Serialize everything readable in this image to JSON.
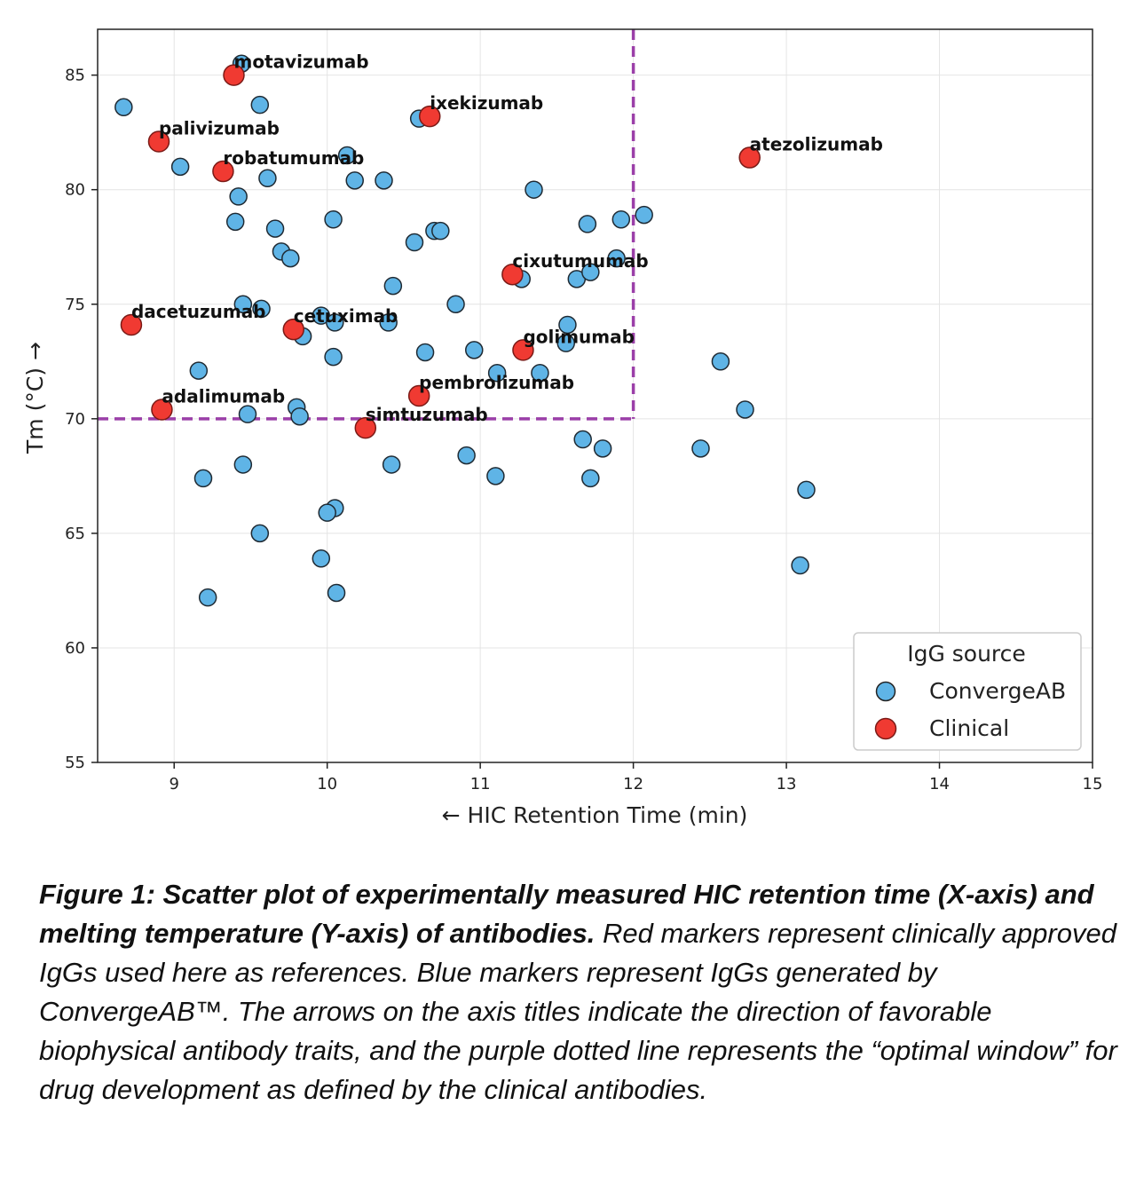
{
  "chart_data": {
    "type": "scatter",
    "xlabel": "← HIC Retention Time (min)",
    "ylabel": "Tm (°C) →",
    "xlim": [
      8.5,
      15
    ],
    "ylim": [
      55,
      87
    ],
    "xticks": [
      9,
      10,
      11,
      12,
      13,
      14,
      15
    ],
    "yticks": [
      55,
      60,
      65,
      70,
      75,
      80,
      85
    ],
    "grid": true,
    "legend": {
      "title": "IgG source",
      "position": "bottom-right"
    },
    "optimal_window": {
      "x_max": 12,
      "y_min": 70,
      "color": "#9b3fa8"
    },
    "series": [
      {
        "name": "ConvergeAB",
        "color": "#5fb4e6",
        "points": [
          {
            "x": 8.67,
            "y": 83.6
          },
          {
            "x": 9.04,
            "y": 81.0
          },
          {
            "x": 9.44,
            "y": 85.5
          },
          {
            "x": 9.56,
            "y": 83.7
          },
          {
            "x": 9.42,
            "y": 79.7
          },
          {
            "x": 9.4,
            "y": 78.6
          },
          {
            "x": 9.61,
            "y": 80.5
          },
          {
            "x": 9.66,
            "y": 78.3
          },
          {
            "x": 9.7,
            "y": 77.3
          },
          {
            "x": 9.76,
            "y": 77.0
          },
          {
            "x": 9.45,
            "y": 75.0
          },
          {
            "x": 9.57,
            "y": 74.8
          },
          {
            "x": 9.16,
            "y": 72.1
          },
          {
            "x": 9.48,
            "y": 70.2
          },
          {
            "x": 9.45,
            "y": 68.0
          },
          {
            "x": 9.19,
            "y": 67.4
          },
          {
            "x": 9.56,
            "y": 65.0
          },
          {
            "x": 9.22,
            "y": 62.2
          },
          {
            "x": 10.13,
            "y": 81.5
          },
          {
            "x": 10.18,
            "y": 80.4
          },
          {
            "x": 10.37,
            "y": 80.4
          },
          {
            "x": 10.04,
            "y": 78.7
          },
          {
            "x": 9.96,
            "y": 74.5
          },
          {
            "x": 10.05,
            "y": 74.2
          },
          {
            "x": 9.84,
            "y": 73.6
          },
          {
            "x": 10.04,
            "y": 72.7
          },
          {
            "x": 9.8,
            "y": 70.5
          },
          {
            "x": 9.82,
            "y": 70.1
          },
          {
            "x": 10.42,
            "y": 68.0
          },
          {
            "x": 10.05,
            "y": 66.1
          },
          {
            "x": 10.0,
            "y": 65.9
          },
          {
            "x": 9.96,
            "y": 63.9
          },
          {
            "x": 10.06,
            "y": 62.4
          },
          {
            "x": 10.6,
            "y": 83.1
          },
          {
            "x": 10.57,
            "y": 77.7
          },
          {
            "x": 10.7,
            "y": 78.2
          },
          {
            "x": 10.74,
            "y": 78.2
          },
          {
            "x": 10.43,
            "y": 75.8
          },
          {
            "x": 10.4,
            "y": 74.2
          },
          {
            "x": 10.84,
            "y": 75.0
          },
          {
            "x": 10.64,
            "y": 72.9
          },
          {
            "x": 10.96,
            "y": 73.0
          },
          {
            "x": 11.11,
            "y": 72.0
          },
          {
            "x": 10.91,
            "y": 68.4
          },
          {
            "x": 11.1,
            "y": 67.5
          },
          {
            "x": 11.35,
            "y": 80.0
          },
          {
            "x": 11.27,
            "y": 76.1
          },
          {
            "x": 11.57,
            "y": 74.1
          },
          {
            "x": 11.56,
            "y": 73.3
          },
          {
            "x": 11.39,
            "y": 72.0
          },
          {
            "x": 11.63,
            "y": 76.1
          },
          {
            "x": 11.72,
            "y": 76.4
          },
          {
            "x": 11.89,
            "y": 77.0
          },
          {
            "x": 11.7,
            "y": 78.5
          },
          {
            "x": 11.92,
            "y": 78.7
          },
          {
            "x": 12.07,
            "y": 78.9
          },
          {
            "x": 11.67,
            "y": 69.1
          },
          {
            "x": 11.8,
            "y": 68.7
          },
          {
            "x": 11.72,
            "y": 67.4
          },
          {
            "x": 12.57,
            "y": 72.5
          },
          {
            "x": 12.73,
            "y": 70.4
          },
          {
            "x": 12.44,
            "y": 68.7
          },
          {
            "x": 13.13,
            "y": 66.9
          },
          {
            "x": 13.09,
            "y": 63.6
          }
        ]
      },
      {
        "name": "Clinical",
        "color": "#f03a32",
        "points": [
          {
            "x": 9.39,
            "y": 85.0,
            "label": "motavizumab"
          },
          {
            "x": 10.67,
            "y": 83.2,
            "label": "ixekizumab"
          },
          {
            "x": 8.9,
            "y": 82.1,
            "label": "palivizumab"
          },
          {
            "x": 9.32,
            "y": 80.8,
            "label": "robatumumab"
          },
          {
            "x": 12.76,
            "y": 81.4,
            "label": "atezolizumab"
          },
          {
            "x": 11.21,
            "y": 76.3,
            "label": "cixutumumab"
          },
          {
            "x": 8.72,
            "y": 74.1,
            "label": "dacetuzumab"
          },
          {
            "x": 9.78,
            "y": 73.9,
            "label": "cetuximab"
          },
          {
            "x": 11.28,
            "y": 73.0,
            "label": "golimumab"
          },
          {
            "x": 10.6,
            "y": 71.0,
            "label": "pembrolizumab"
          },
          {
            "x": 8.92,
            "y": 70.4,
            "label": "adalimumab"
          },
          {
            "x": 10.25,
            "y": 69.6,
            "label": "simtuzumab"
          }
        ]
      }
    ]
  },
  "caption": {
    "bold": "Figure 1: Scatter plot of experimentally measured HIC retention time (X-axis) and melting temperature (Y-axis) of antibodies.",
    "text": " Red markers represent clinically approved IgGs used here as references. Blue markers represent IgGs generated by ConvergeAB™. The arrows on the axis titles indicate the direction of favorable biophysical antibody traits, and the purple dotted line represents the “optimal window” for drug development as defined by the clinical antibodies."
  }
}
